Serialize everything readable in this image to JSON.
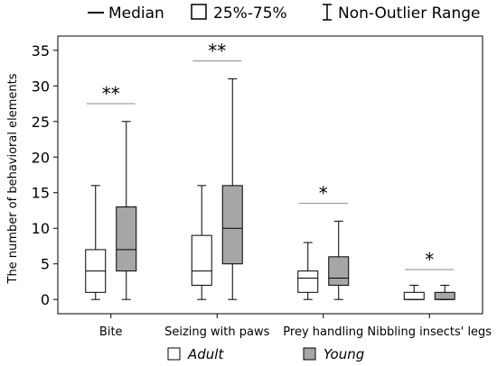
{
  "chart_data": {
    "type": "box",
    "ylabel": "The number of behavioral elements",
    "ylim": [
      -2,
      37
    ],
    "yticks": [
      0,
      5,
      10,
      15,
      20,
      25,
      30,
      35
    ],
    "categories": [
      "Bite",
      "Seizing with paws",
      "Prey handling",
      "Nibbling insects' legs"
    ],
    "legend_top": {
      "median": "Median",
      "iqr": "25%-75%",
      "range": "Non-Outlier Range"
    },
    "series": [
      {
        "name": "Adult",
        "fill": "#ffffff",
        "boxes": [
          {
            "min": 0,
            "q1": 1,
            "median": 4,
            "q3": 7,
            "max": 16
          },
          {
            "min": 0,
            "q1": 2,
            "median": 4,
            "q3": 9,
            "max": 16
          },
          {
            "min": 0,
            "q1": 1,
            "median": 3,
            "q3": 4,
            "max": 8
          },
          {
            "min": 0,
            "q1": 0,
            "median": 0,
            "q3": 1,
            "max": 2
          }
        ]
      },
      {
        "name": "Young",
        "fill": "#a6a6a6",
        "boxes": [
          {
            "min": 0,
            "q1": 4,
            "median": 7,
            "q3": 13,
            "max": 25
          },
          {
            "min": 0,
            "q1": 5,
            "median": 10,
            "q3": 16,
            "max": 31
          },
          {
            "min": 0,
            "q1": 2,
            "median": 3,
            "q3": 6,
            "max": 11
          },
          {
            "min": 0,
            "q1": 0,
            "median": 0,
            "q3": 1,
            "max": 2
          }
        ]
      }
    ],
    "significance": [
      {
        "label": "**",
        "y": 27.5
      },
      {
        "label": "**",
        "y": 33.5
      },
      {
        "label": "*",
        "y": 13.5
      },
      {
        "label": "*",
        "y": 4.2
      }
    ]
  }
}
